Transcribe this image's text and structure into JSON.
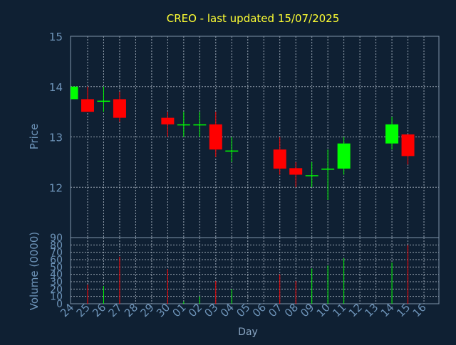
{
  "chart_data": {
    "type": "candlestick",
    "title": "CREO - last updated 15/07/2025",
    "xlabel": "Day",
    "price_panel": {
      "ylabel": "Price",
      "ylim": [
        11,
        15
      ],
      "yticks": [
        "15",
        "14",
        "13",
        "12"
      ]
    },
    "volume_panel": {
      "ylabel": "Volume (0000)",
      "ylim": [
        0,
        90
      ],
      "yticks": [
        "90",
        "80",
        "70",
        "60",
        "50",
        "40",
        "30",
        "20",
        "10",
        "0"
      ]
    },
    "categories": [
      "24",
      "25",
      "26",
      "27",
      "28",
      "29",
      "30",
      "01",
      "02",
      "03",
      "04",
      "05",
      "06",
      "07",
      "08",
      "09",
      "10",
      "11",
      "12",
      "13",
      "14",
      "15",
      "16"
    ],
    "candles": [
      {
        "day": "24",
        "open": 13.75,
        "high": 14.0,
        "low": 13.75,
        "close": 14.0,
        "volume": 0
      },
      {
        "day": "25",
        "open": 13.75,
        "high": 14.0,
        "low": 13.5,
        "close": 13.5,
        "volume": 26
      },
      {
        "day": "26",
        "open": 13.72,
        "high": 14.0,
        "low": 13.5,
        "close": 13.72,
        "volume": 24
      },
      {
        "day": "27",
        "open": 13.75,
        "high": 13.9,
        "low": 13.3,
        "close": 13.38,
        "volume": 64
      },
      {
        "day": "30",
        "open": 13.38,
        "high": 13.5,
        "low": 13.0,
        "close": 13.25,
        "volume": 47
      },
      {
        "day": "01",
        "open": 13.25,
        "high": 13.5,
        "low": 13.0,
        "close": 13.25,
        "volume": 3
      },
      {
        "day": "02",
        "open": 13.25,
        "high": 13.5,
        "low": 13.0,
        "close": 13.25,
        "volume": 10
      },
      {
        "day": "03",
        "open": 13.25,
        "high": 13.5,
        "low": 12.6,
        "close": 12.75,
        "volume": 31
      },
      {
        "day": "04",
        "open": 12.73,
        "high": 13.0,
        "low": 12.5,
        "close": 12.73,
        "volume": 20
      },
      {
        "day": "07",
        "open": 12.75,
        "high": 13.0,
        "low": 12.25,
        "close": 12.37,
        "volume": 40
      },
      {
        "day": "08",
        "open": 12.38,
        "high": 12.5,
        "low": 12.0,
        "close": 12.25,
        "volume": 31
      },
      {
        "day": "09",
        "open": 12.24,
        "high": 12.5,
        "low": 12.0,
        "close": 12.24,
        "volume": 48
      },
      {
        "day": "10",
        "open": 12.37,
        "high": 12.75,
        "low": 11.75,
        "close": 12.37,
        "volume": 52
      },
      {
        "day": "11",
        "open": 12.37,
        "high": 13.0,
        "low": 12.25,
        "close": 12.87,
        "volume": 62
      },
      {
        "day": "14",
        "open": 12.87,
        "high": 13.4,
        "low": 12.75,
        "close": 13.25,
        "volume": 56
      },
      {
        "day": "15",
        "open": 13.05,
        "high": 13.05,
        "low": 12.45,
        "close": 12.62,
        "volume": 80
      }
    ],
    "grid": true
  },
  "colors": {
    "background": "#0f2033",
    "up": "#00ff00",
    "down": "#ff0000",
    "doji": "#00ff00",
    "axis": "#7f93aa",
    "grid": "#c6d0dc",
    "title": "#ffff33",
    "tick_text": "#6d93b8"
  }
}
